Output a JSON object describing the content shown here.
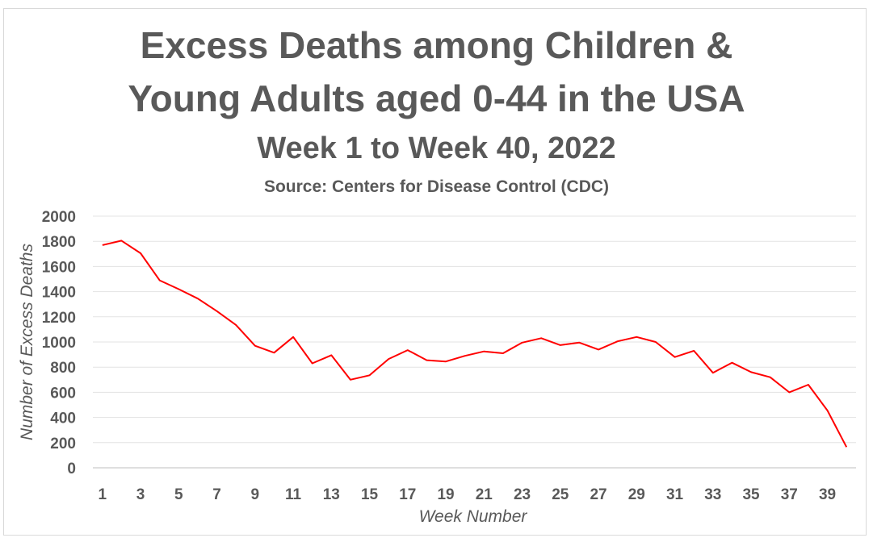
{
  "chart_data": {
    "type": "line",
    "title": "Excess Deaths among Children &",
    "title_line2": "Young Adults aged 0-44 in the USA",
    "subtitle": "Week 1 to Week 40, 2022",
    "source": "Source: Centers for Disease Control (CDC)",
    "xlabel": "Week Number",
    "ylabel": "Number of Excess Deaths",
    "ylim": [
      0,
      2000
    ],
    "y_ticks": [
      0,
      200,
      400,
      600,
      800,
      1000,
      1200,
      1400,
      1600,
      1800,
      2000
    ],
    "x_tick_labels": [
      1,
      3,
      5,
      7,
      9,
      11,
      13,
      15,
      17,
      19,
      21,
      23,
      25,
      27,
      29,
      31,
      33,
      35,
      37,
      39
    ],
    "grid": "horizontal",
    "legend": "none",
    "line_color": "#ff0000",
    "series": [
      {
        "x": [
          1,
          2,
          3,
          4,
          5,
          6,
          7,
          8,
          9,
          10,
          11,
          12,
          13,
          14,
          15,
          16,
          17,
          18,
          19,
          20,
          21,
          22,
          23,
          24,
          25,
          26,
          27,
          28,
          29,
          30,
          31,
          32,
          33,
          34,
          35,
          36,
          37,
          38,
          39,
          40
        ],
        "values": [
          1770,
          1805,
          1705,
          1490,
          1420,
          1345,
          1245,
          1135,
          970,
          915,
          1040,
          830,
          895,
          700,
          735,
          865,
          935,
          855,
          845,
          890,
          925,
          910,
          995,
          1030,
          975,
          995,
          940,
          1005,
          1040,
          1000,
          880,
          930,
          755,
          835,
          760,
          720,
          600,
          660,
          455,
          165
        ]
      }
    ]
  }
}
